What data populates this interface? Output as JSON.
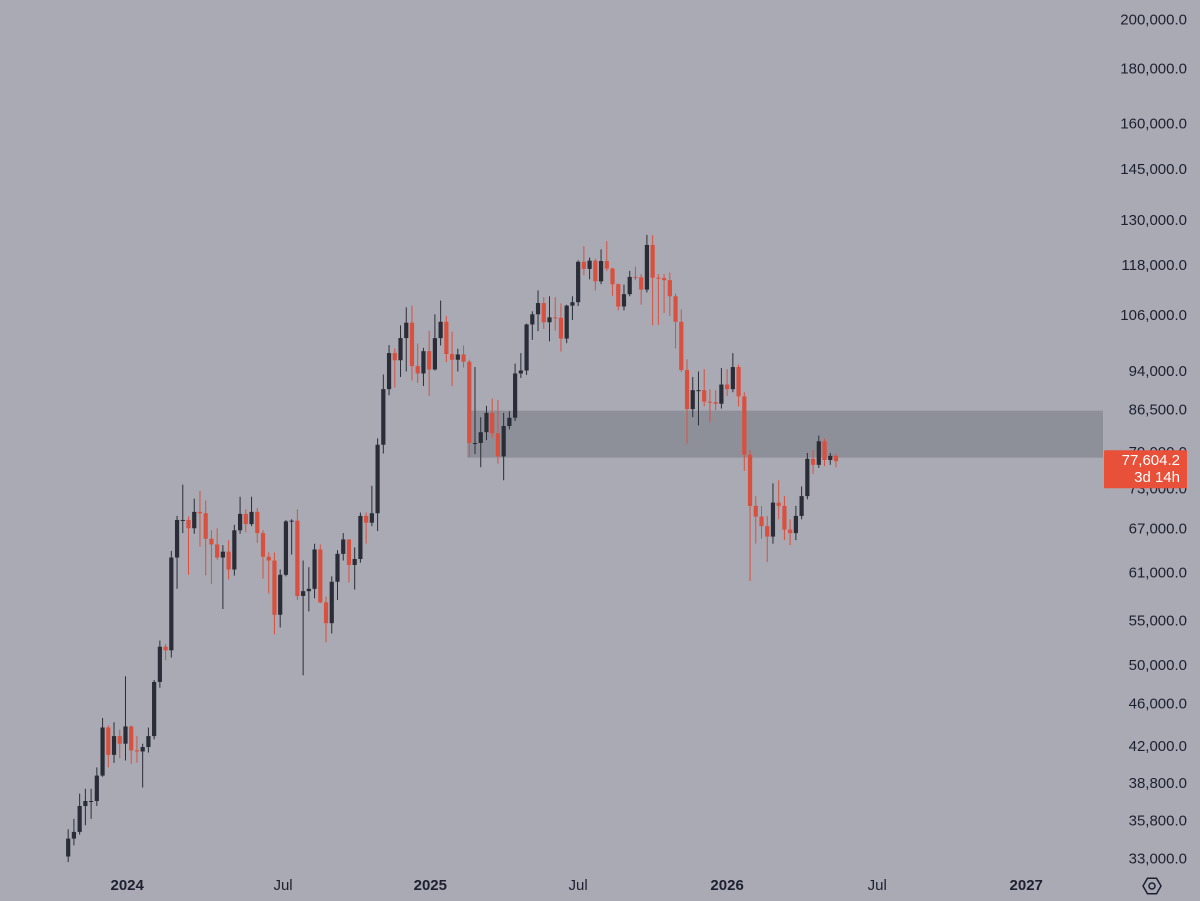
{
  "chart_data": {
    "type": "candlestick",
    "log_scale": true,
    "up_color": "#2a2d37",
    "down_color": "#d9503f",
    "zone_color": "#8e9099",
    "xlim": [
      -11.9,
      180.6
    ],
    "xticks": [
      {
        "value": 10.3,
        "label": "2024"
      },
      {
        "value": 37.5,
        "label": "Jul"
      },
      {
        "value": 63.2,
        "label": "2025"
      },
      {
        "value": 89.0,
        "label": "Jul"
      },
      {
        "value": 115.0,
        "label": "2026"
      },
      {
        "value": 141.2,
        "label": "Jul"
      },
      {
        "value": 167.2,
        "label": "2027"
      }
    ],
    "ylim": [
      31700,
      209000
    ],
    "yticks": [
      {
        "value": 200000,
        "label": "200,000.0"
      },
      {
        "value": 180000,
        "label": "180,000.0"
      },
      {
        "value": 160000,
        "label": "160,000.0"
      },
      {
        "value": 145000,
        "label": "145,000.0"
      },
      {
        "value": 130000,
        "label": "130,000.0"
      },
      {
        "value": 118000,
        "label": "118,000.0"
      },
      {
        "value": 106000,
        "label": "106,000.0"
      },
      {
        "value": 94000,
        "label": "94,000.0"
      },
      {
        "value": 86500,
        "label": "86,500.0"
      },
      {
        "value": 79000,
        "label": "79,000.0"
      },
      {
        "value": 73000,
        "label": "73,000.0"
      },
      {
        "value": 67000,
        "label": "67,000.0"
      },
      {
        "value": 61000,
        "label": "61,000.0"
      },
      {
        "value": 55000,
        "label": "55,000.0"
      },
      {
        "value": 50000,
        "label": "50,000.0"
      },
      {
        "value": 46000,
        "label": "46,000.0"
      },
      {
        "value": 42000,
        "label": "42,000.0"
      },
      {
        "value": 38800,
        "label": "38,800.0"
      },
      {
        "value": 35800,
        "label": "35,800.0"
      },
      {
        "value": 33000,
        "label": "33,000.0"
      }
    ],
    "zone": {
      "start": 70,
      "low": 78200,
      "high": 86500
    },
    "last_price": {
      "value": 77604.2,
      "label": "77,604.2",
      "countdown": "3d 14h"
    },
    "open": [
      33200,
      34500,
      35000,
      37000,
      37400,
      37400,
      39500,
      43800,
      41300,
      43000,
      42300,
      43900,
      41700,
      41600,
      42000,
      43000,
      48300,
      52100,
      51700,
      63100,
      68400,
      68400,
      67200,
      69600,
      69400,
      65700,
      64900,
      63100,
      63900,
      61500,
      66900,
      69300,
      67800,
      69600,
      66500,
      63200,
      62700,
      55800,
      60800,
      68200,
      68300,
      58100,
      58700,
      59000,
      64200,
      57300,
      54800,
      59900,
      63600,
      65600,
      62100,
      62900,
      69000,
      68000,
      69400,
      80400,
      90600,
      97900,
      96400,
      101100,
      104500,
      95200,
      93700,
      98300,
      94500,
      101100,
      104700,
      97700,
      96500,
      97600,
      96100,
      80700,
      80700,
      82600,
      86100,
      82400,
      78400,
      83700,
      85200,
      93700,
      94300,
      104100,
      106400,
      109000,
      104600,
      105700,
      105600,
      101000,
      108400,
      109200,
      119100,
      117300,
      119400,
      114200,
      119300,
      117400,
      113500,
      108200,
      111100,
      115300,
      115200,
      112200,
      123500,
      115100,
      115000,
      114500,
      110600,
      104700,
      94400,
      86800,
      90400,
      90400,
      88200,
      88100,
      87800,
      91500,
      90600,
      95000,
      89200,
      78700,
      70500,
      68900,
      67500,
      66000,
      71000,
      70500,
      67000,
      66500,
      69000,
      72000,
      78000,
      77000,
      81000,
      77800,
      78500
    ],
    "high": [
      35200,
      36000,
      38000,
      38400,
      38400,
      40200,
      44700,
      44000,
      44300,
      43600,
      48900,
      44000,
      43000,
      42300,
      43800,
      48500,
      52800,
      52400,
      64000,
      69000,
      73800,
      68900,
      71600,
      72800,
      71300,
      66900,
      67200,
      64800,
      65500,
      67700,
      71900,
      70000,
      71900,
      70200,
      66900,
      63800,
      63800,
      61500,
      68400,
      68500,
      70000,
      62700,
      61800,
      65000,
      64900,
      58000,
      60600,
      64100,
      66500,
      65600,
      64500,
      69500,
      69500,
      73600,
      81500,
      93500,
      99600,
      98900,
      103900,
      108000,
      108400,
      99900,
      99000,
      102700,
      106400,
      109600,
      106000,
      102500,
      98800,
      99500,
      96500,
      95000,
      85300,
      87400,
      88800,
      88500,
      86100,
      86400,
      95700,
      97900,
      104300,
      107100,
      112000,
      110400,
      110600,
      110400,
      108900,
      108600,
      110600,
      119500,
      123200,
      120200,
      119900,
      122300,
      124500,
      117600,
      113700,
      113400,
      116800,
      117900,
      116000,
      126200,
      126100,
      116000,
      116000,
      116400,
      111200,
      107500,
      96600,
      93000,
      94100,
      94600,
      90600,
      90400,
      94800,
      94600,
      97900,
      95500,
      90000,
      79500,
      72000,
      70500,
      69000,
      74000,
      74500,
      72000,
      68500,
      70500,
      73500,
      79000,
      79500,
      82000,
      81500,
      79000,
      78900
    ],
    "low": [
      32800,
      34000,
      34800,
      35500,
      36000,
      37000,
      39400,
      40200,
      40600,
      41000,
      40800,
      40500,
      40600,
      38500,
      41500,
      42700,
      47700,
      50600,
      50900,
      59000,
      66500,
      60800,
      66400,
      64600,
      60700,
      59600,
      62800,
      56500,
      60200,
      60700,
      66400,
      66600,
      67500,
      65100,
      60300,
      58400,
      53500,
      54300,
      60600,
      63500,
      57600,
      49000,
      56200,
      57800,
      57200,
      52600,
      53600,
      57600,
      62700,
      59800,
      58900,
      62400,
      65000,
      67500,
      66800,
      78900,
      89400,
      90900,
      93000,
      94100,
      92300,
      91800,
      91200,
      89300,
      94300,
      99500,
      96000,
      91200,
      94100,
      94900,
      78300,
      78800,
      76600,
      81200,
      81600,
      77200,
      74500,
      83100,
      84600,
      92800,
      93400,
      100700,
      102600,
      103100,
      100400,
      102700,
      98200,
      100000,
      105100,
      108300,
      115700,
      114700,
      112000,
      113500,
      116800,
      110700,
      107300,
      107300,
      110600,
      114500,
      108600,
      111500,
      103900,
      104000,
      106700,
      106000,
      98900,
      94000,
      80600,
      85300,
      83800,
      87300,
      84400,
      86600,
      86900,
      89300,
      90000,
      87300,
      76000,
      60000,
      65000,
      65700,
      62500,
      65000,
      68500,
      65500,
      64800,
      65500,
      68500,
      71500,
      75500,
      76500,
      76800,
      77000,
      76600
    ],
    "close": [
      34500,
      35000,
      37000,
      37400,
      37400,
      39500,
      43800,
      41300,
      43000,
      42300,
      43900,
      41700,
      41600,
      42000,
      43000,
      48300,
      52100,
      51700,
      63100,
      68400,
      68400,
      67200,
      69600,
      69400,
      65700,
      64900,
      63100,
      63900,
      61500,
      66900,
      69300,
      67800,
      69600,
      66500,
      63200,
      62700,
      55800,
      60800,
      68200,
      68300,
      58100,
      58700,
      59000,
      64200,
      57300,
      54800,
      59900,
      63600,
      65600,
      62100,
      62900,
      69000,
      68000,
      69400,
      80400,
      90600,
      97900,
      96400,
      101100,
      104500,
      95200,
      93700,
      98300,
      94500,
      101100,
      104700,
      97700,
      96500,
      97600,
      96100,
      80700,
      80700,
      82600,
      86100,
      82400,
      78400,
      83700,
      85200,
      93700,
      94300,
      104100,
      106400,
      109000,
      104600,
      105700,
      105600,
      101000,
      108400,
      109200,
      119100,
      117300,
      119400,
      114200,
      119300,
      117400,
      113500,
      108200,
      111100,
      115300,
      115200,
      112200,
      123500,
      115100,
      115000,
      114500,
      110600,
      104700,
      94400,
      86800,
      90400,
      90400,
      88200,
      88100,
      87800,
      91500,
      90600,
      95000,
      89200,
      78700,
      70500,
      68900,
      67500,
      66000,
      71000,
      70500,
      67000,
      66500,
      69000,
      72000,
      78000,
      77000,
      81000,
      77800,
      78500,
      77604.2
    ]
  }
}
